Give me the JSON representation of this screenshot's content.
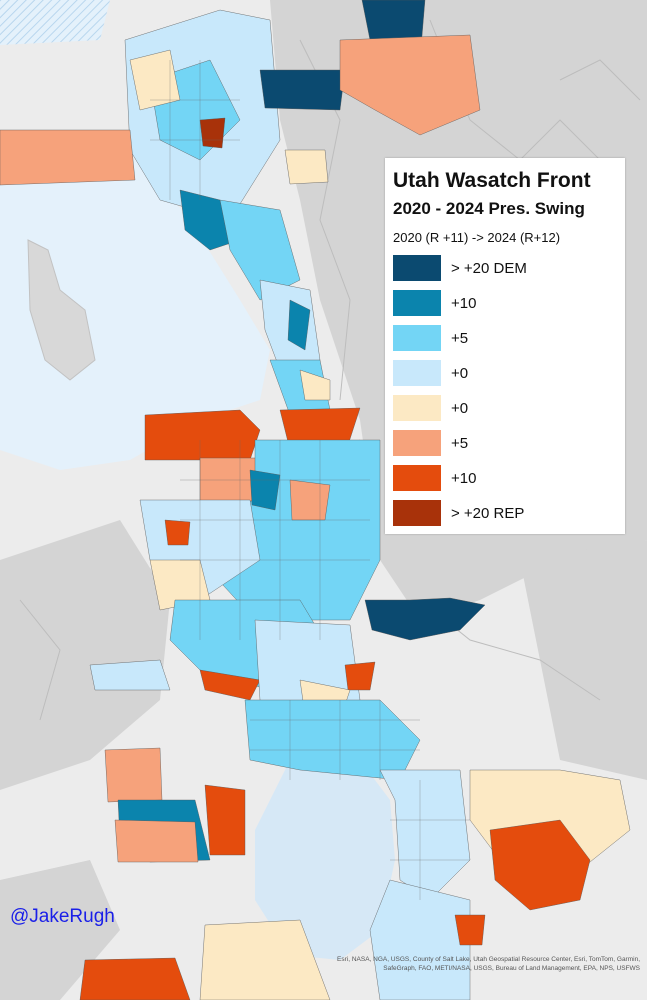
{
  "map": {
    "title": "Utah Wasatch Front",
    "subtitle": "2020 - 2024 Pres. Swing",
    "note": "2020 (R +11) -> 2024 (R+12)",
    "colors": {
      "water": "#e4f1fb",
      "terrain": "#ececec",
      "ridge": "#cfcfcf"
    }
  },
  "legend": {
    "items": [
      {
        "label": "> +20 DEM",
        "color": "#0b4a70"
      },
      {
        "label": "+10",
        "color": "#0b84ad"
      },
      {
        "label": "+5",
        "color": "#73d5f5"
      },
      {
        "label": "+0",
        "color": "#c8e8fb"
      },
      {
        "label": "+0",
        "color": "#fce9c4"
      },
      {
        "label": "+5",
        "color": "#f6a27b"
      },
      {
        "label": "+10",
        "color": "#e44c0d"
      },
      {
        "label": "> +20 REP",
        "color": "#a8320a"
      }
    ]
  },
  "credit": "@JakeRugh",
  "attribution": "Esri, NASA, NGA, USGS, County of Salt Lake, Utah Geospatial Resource Center, Esri, TomTom, Garmin, SafeGraph, FAO, METI/NASA, USGS, Bureau of Land Management, EPA, NPS, USFWS"
}
